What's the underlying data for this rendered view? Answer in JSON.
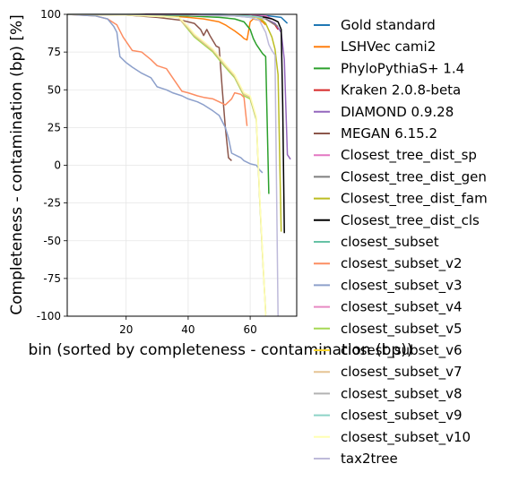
{
  "chart_data": {
    "type": "line",
    "xlabel": "bin (sorted by completeness - contamination (bp))",
    "ylabel": "Completeness - contamination (bp) [%]",
    "xlim": [
      1,
      75
    ],
    "ylim": [
      -100,
      100
    ],
    "xticks": [
      20,
      40,
      60
    ],
    "yticks": [
      100,
      75,
      50,
      25,
      0,
      -25,
      -50,
      -75,
      -100
    ],
    "grid": true,
    "legend_position": "right",
    "series": [
      {
        "name": "Gold standard",
        "color": "#1f77b4",
        "x": [
          1,
          20,
          40,
          50,
          60,
          66,
          70,
          72
        ],
        "y": [
          100,
          100,
          100,
          100,
          99.5,
          99,
          98,
          94
        ]
      },
      {
        "name": "LSHVec cami2",
        "color": "#ff7f0e",
        "x": [
          1,
          20,
          30,
          40,
          45,
          50,
          52,
          55,
          57,
          58,
          59,
          60,
          61,
          63,
          64,
          65
        ],
        "y": [
          100,
          100,
          99.5,
          98,
          97,
          95,
          93,
          89,
          86,
          84,
          83,
          95,
          97,
          96,
          95,
          93
        ]
      },
      {
        "name": "PhyloPythiaS+ 1.4",
        "color": "#2ca02c",
        "x": [
          1,
          20,
          40,
          50,
          55,
          58,
          60,
          61,
          62,
          63,
          64,
          65,
          66
        ],
        "y": [
          100,
          100,
          99,
          98,
          97,
          95,
          90,
          84,
          80,
          77,
          74,
          72,
          -19
        ]
      },
      {
        "name": "Kraken 2.0.8-beta",
        "color": "#d62728",
        "x": [
          1,
          20,
          40,
          55,
          60,
          65,
          68,
          69
        ],
        "y": [
          100,
          100,
          100,
          99.5,
          99,
          97,
          93,
          90
        ]
      },
      {
        "name": "DIAMOND 0.9.28",
        "color": "#9467bd",
        "x": [
          1,
          20,
          40,
          55,
          60,
          65,
          68,
          70,
          71,
          72,
          73
        ],
        "y": [
          100,
          100,
          100,
          99.5,
          99,
          97,
          94,
          88,
          70,
          7,
          4
        ]
      },
      {
        "name": "MEGAN 6.15.2",
        "color": "#8c564b",
        "x": [
          1,
          20,
          30,
          38,
          42,
          44,
          45,
          46,
          47,
          49,
          50,
          51,
          52,
          53,
          54
        ],
        "y": [
          100,
          99.5,
          98,
          96,
          94,
          90,
          86,
          90,
          86,
          79,
          78,
          50,
          25,
          5,
          3
        ]
      },
      {
        "name": "Closest_tree_dist_sp",
        "color": "#e377c2",
        "x": [
          1,
          20,
          40,
          60,
          65,
          68
        ],
        "y": [
          100,
          100,
          100,
          99.5,
          99,
          96
        ]
      },
      {
        "name": "Closest_tree_dist_gen",
        "color": "#7f7f7f",
        "x": [
          1,
          20,
          40,
          60,
          65,
          69
        ],
        "y": [
          100,
          100,
          99.5,
          99,
          97,
          92
        ]
      },
      {
        "name": "Closest_tree_dist_fam",
        "color": "#bcbd22",
        "x": [
          1,
          20,
          40,
          55,
          62,
          64,
          65,
          67,
          68,
          69,
          70
        ],
        "y": [
          100,
          100,
          99.5,
          99,
          98,
          96,
          94,
          85,
          77,
          60,
          -44
        ]
      },
      {
        "name": "Closest_tree_dist_cls",
        "color": "#000000",
        "x": [
          1,
          20,
          40,
          55,
          60,
          63,
          65,
          67,
          68,
          69,
          70,
          70.5,
          71
        ],
        "y": [
          100,
          100,
          100,
          99.5,
          99,
          98.5,
          98,
          97,
          96,
          95,
          90,
          40,
          -45
        ]
      },
      {
        "name": "closest_subset",
        "color": "#66c2a5",
        "x": [
          1,
          20,
          40,
          55,
          60
        ],
        "y": [
          100,
          100,
          99.5,
          99,
          98
        ]
      },
      {
        "name": "closest_subset_v2",
        "color": "#fc8d62",
        "x": [
          1,
          10,
          14,
          17,
          19,
          20,
          22,
          25,
          28,
          30,
          33,
          35,
          38,
          40,
          43,
          45,
          48,
          50,
          52,
          54,
          55,
          57,
          58,
          59
        ],
        "y": [
          100,
          99,
          97,
          93,
          85,
          82,
          76,
          75,
          70,
          66,
          64,
          58,
          49,
          48,
          46,
          45,
          44,
          42,
          40,
          44,
          48,
          47,
          45,
          26
        ]
      },
      {
        "name": "closest_subset_v3",
        "color": "#8da0cb",
        "x": [
          1,
          10,
          14,
          16,
          17,
          18,
          20,
          22,
          25,
          28,
          30,
          33,
          35,
          38,
          40,
          43,
          45,
          48,
          50,
          52,
          53,
          54,
          56,
          57,
          58,
          60,
          62,
          63,
          64
        ],
        "y": [
          100,
          99,
          97,
          92,
          88,
          72,
          68,
          65,
          61,
          58,
          52,
          50,
          48,
          46,
          44,
          42,
          40,
          36,
          33,
          25,
          18,
          8,
          6,
          5,
          3,
          1,
          0,
          -3,
          -5
        ]
      },
      {
        "name": "closest_subset_v4",
        "color": "#e78ac3",
        "x": [
          1,
          20,
          40,
          60,
          62
        ],
        "y": [
          100,
          100,
          99.5,
          99,
          98
        ]
      },
      {
        "name": "closest_subset_v5",
        "color": "#a6d854",
        "x": [
          1,
          20,
          37,
          38,
          40,
          42,
          45,
          48,
          50,
          52,
          55,
          57,
          58,
          60,
          62,
          63,
          64,
          65
        ],
        "y": [
          100,
          99.5,
          98,
          95,
          90,
          85,
          80,
          75,
          70,
          65,
          58,
          50,
          46,
          44,
          30,
          -20,
          -60,
          -98
        ]
      },
      {
        "name": "closest_subset_v6",
        "color": "#ffd92f",
        "x": [
          1,
          20,
          40,
          60,
          64
        ],
        "y": [
          100,
          100,
          99.5,
          99,
          97
        ]
      },
      {
        "name": "closest_subset_v7",
        "color": "#e5c494",
        "x": [
          1,
          20,
          37,
          38,
          40,
          42,
          45,
          48,
          50,
          52,
          55,
          57,
          58,
          60,
          62,
          63,
          64,
          65
        ],
        "y": [
          100,
          99.5,
          98,
          95,
          91,
          86,
          81,
          76,
          71,
          66,
          59,
          51,
          47,
          45,
          31,
          -19,
          -59,
          -99
        ]
      },
      {
        "name": "closest_subset_v8",
        "color": "#b3b3b3",
        "x": [
          1,
          20,
          40,
          60,
          65
        ],
        "y": [
          100,
          100,
          99.5,
          99,
          97
        ]
      },
      {
        "name": "closest_subset_v9",
        "color": "#8dd3c7",
        "x": [
          1,
          20,
          40,
          60,
          64
        ],
        "y": [
          100,
          100,
          99.5,
          99,
          98
        ]
      },
      {
        "name": "closest_subset_v10",
        "color": "#ffffb3",
        "x": [
          1,
          20,
          37,
          38,
          40,
          42,
          45,
          48,
          50,
          52,
          55,
          57,
          58,
          60,
          62,
          63,
          64,
          65
        ],
        "y": [
          100,
          99.5,
          98,
          96,
          92,
          87,
          82,
          77,
          72,
          67,
          60,
          52,
          48,
          46,
          32,
          -18,
          -58,
          -100
        ]
      },
      {
        "name": "tax2tree",
        "color": "#bebada",
        "x": [
          1,
          20,
          40,
          55,
          60,
          63,
          64,
          65,
          66,
          67,
          68,
          69
        ],
        "y": [
          100,
          100,
          99.5,
          99,
          98,
          96,
          92,
          88,
          80,
          76,
          73,
          -100
        ]
      }
    ]
  }
}
